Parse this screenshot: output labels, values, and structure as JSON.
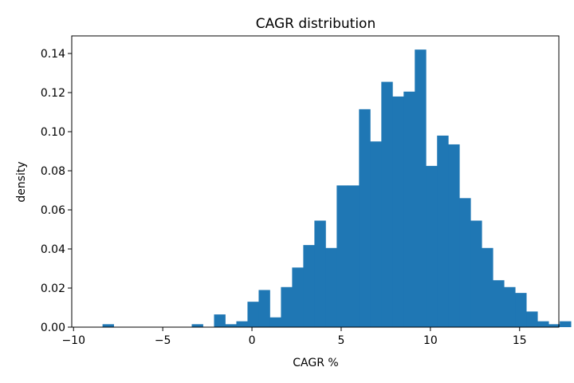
{
  "chart_data": {
    "type": "bar",
    "title": "CAGR distribution",
    "xlabel": "CAGR %",
    "ylabel": "density",
    "xlim": [
      -10.1,
      17.2
    ],
    "ylim": [
      0,
      0.149
    ],
    "xticks": [
      -10,
      -5,
      0,
      5,
      10,
      15
    ],
    "xtick_labels": [
      "−10",
      "−5",
      "0",
      "5",
      "10",
      "15"
    ],
    "yticks": [
      0.0,
      0.02,
      0.04,
      0.06,
      0.08,
      0.1,
      0.12,
      0.14
    ],
    "ytick_labels": [
      "0.00",
      "0.02",
      "0.04",
      "0.06",
      "0.08",
      "0.10",
      "0.12",
      "0.14"
    ],
    "bin_start": -9.0,
    "bin_width": 0.625,
    "values": [
      0.0,
      0.0015,
      0.0,
      0.0,
      0.0,
      0.0,
      0.0,
      0.0,
      0.0,
      0.0015,
      0.0,
      0.0065,
      0.0015,
      0.003,
      0.013,
      0.019,
      0.005,
      0.0205,
      0.0305,
      0.042,
      0.0545,
      0.0405,
      0.0725,
      0.0725,
      0.1115,
      0.095,
      0.1255,
      0.118,
      0.1205,
      0.142,
      0.0825,
      0.098,
      0.0935,
      0.066,
      0.0545,
      0.0405,
      0.024,
      0.0205,
      0.0175,
      0.008,
      0.003,
      0.0015,
      0.003
    ],
    "bar_color": "#1f77b4",
    "grid": false
  }
}
